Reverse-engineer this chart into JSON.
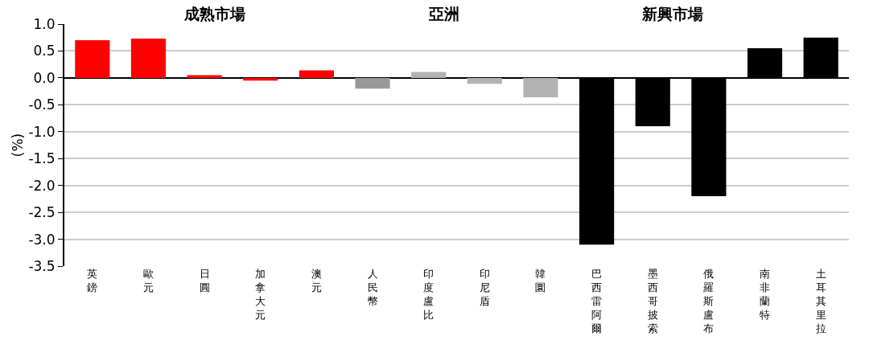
{
  "chart_data": {
    "type": "bar",
    "ylabel": "(%)",
    "categories": [
      "英鎊",
      "歐元",
      "日圓",
      "加拿大元",
      "澳元",
      "人民幣",
      "印度盧比",
      "印尼盾",
      "韓圜",
      "巴西雷阿爾",
      "墨西哥披索",
      "俄羅斯盧布",
      "南非蘭特",
      "土耳其里拉"
    ],
    "values": [
      0.7,
      0.73,
      0.05,
      -0.05,
      0.14,
      -0.2,
      0.11,
      -0.11,
      -0.36,
      -3.1,
      -0.9,
      -2.2,
      0.55,
      0.75
    ],
    "colors": [
      "#ff0000",
      "#ff0000",
      "#ff0000",
      "#ff0000",
      "#ff0000",
      "#999999",
      "#b3b3b3",
      "#b3b3b3",
      "#b3b3b3",
      "#000000",
      "#000000",
      "#000000",
      "#000000",
      "#000000"
    ],
    "annotations": [
      "成熟市場",
      "亞洲",
      "新興市場"
    ],
    "ylim": [
      -3.5,
      1.0
    ],
    "yticks": [
      {
        "value": -3.5,
        "label": "-3.5"
      },
      {
        "value": -3.0,
        "label": "-3.0"
      },
      {
        "value": -2.5,
        "label": "-2.5"
      },
      {
        "value": -2.0,
        "label": "-2.0"
      },
      {
        "value": -1.5,
        "label": "-1.5"
      },
      {
        "value": -1.0,
        "label": "-1.0"
      },
      {
        "value": -0.5,
        "label": "-0.5"
      },
      {
        "value": 0.0,
        "label": "0.0"
      },
      {
        "value": 0.5,
        "label": "0.5"
      },
      {
        "value": 1.0,
        "label": "1.0"
      }
    ],
    "grid": "y"
  }
}
